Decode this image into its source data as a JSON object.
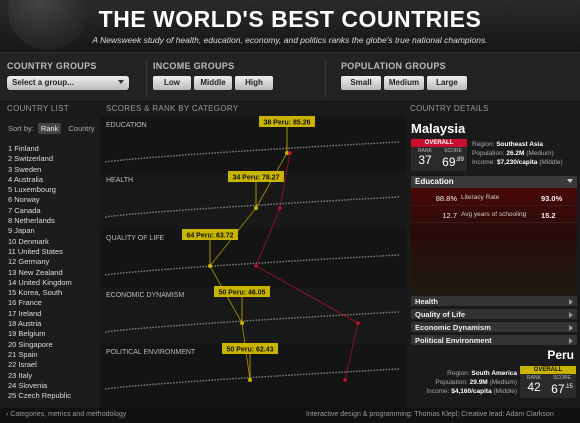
{
  "header": {
    "title": "THE WORLD'S BEST COUNTRIES",
    "subtitle": "A Newsweek study of health, education, economy, and politics ranks the globe's true national champions."
  },
  "filters": {
    "country_groups": {
      "label": "COUNTRY GROUPS",
      "select_value": "Select a group..."
    },
    "income_groups": {
      "label": "INCOME GROUPS",
      "buttons": [
        "Low",
        "Middle",
        "High"
      ]
    },
    "population_groups": {
      "label": "POPULATION GROUPS",
      "buttons": [
        "Small",
        "Medium",
        "Large"
      ]
    }
  },
  "panels": {
    "list_label": "COUNTRY LIST",
    "scores_label": "SCORES & RANK BY CATEGORY",
    "details_label": "COUNTRY DETAILS"
  },
  "list": {
    "sort_label": "Sort by:",
    "sort_options": [
      "Rank",
      "Country"
    ],
    "countries": [
      "1 Finland",
      "2 Switzerland",
      "3 Sweden",
      "4 Australia",
      "5 Luxembourg",
      "6 Norway",
      "7 Canada",
      "8 Netherlands",
      "9 Japan",
      "10 Denmark",
      "11 United States",
      "12 Germany",
      "13 New Zealand",
      "14 United Kingdom",
      "15 Korea, South",
      "16 France",
      "17 Ireland",
      "18 Austria",
      "19 Belgium",
      "20 Singapore",
      "21 Spain",
      "22 Israel",
      "23 Italy",
      "24 Slovenia",
      "25 Czech Republic"
    ]
  },
  "chart_data": {
    "type": "scatter",
    "categories": [
      "EDUCATION",
      "HEALTH",
      "QUALITY OF LIFE",
      "ECONOMIC DYNAMISM",
      "POLITICAL ENVIRONMENT"
    ],
    "highlight": {
      "labels": [
        "38 Peru: 85.26",
        "34 Peru: 78.27",
        "64 Peru: 63.72",
        "50 Peru: 46.05",
        "50 Peru: 62.43"
      ]
    },
    "colors": {
      "highlight": "#c9b400",
      "compare": "#c8102e"
    }
  },
  "details": {
    "selected": {
      "name": "Malaysia",
      "overall_label": "OVERALL",
      "rank_label": "RANK",
      "score_label": "SCORE",
      "rank": "37",
      "score": "69",
      "score_dec": ".89",
      "region_label": "Region:",
      "region": "Southeast Asia",
      "population_label": "Population:",
      "population": "26.2M",
      "population_group": "(Medium)",
      "income_label": "Income:",
      "income": "$7,230/capita",
      "income_group": "(Middle)"
    },
    "expanded_category": {
      "name": "Education",
      "metrics": [
        {
          "value_a": "88.8%",
          "label": "Literacy Rate",
          "value_b": "93.0%"
        },
        {
          "value_a": "12.7",
          "label": "Avg years of schooling",
          "value_b": "15.2"
        }
      ]
    },
    "collapsed_categories": [
      "Health",
      "Quality of Life",
      "Economic Dynamism",
      "Political Environment"
    ],
    "compare": {
      "name": "Peru",
      "overall_label": "OVERALL",
      "rank_label": "RANK",
      "score_label": "SCORE",
      "rank": "42",
      "score": "67",
      "score_dec": ".15",
      "region_label": "Region:",
      "region": "South America",
      "population_label": "Population:",
      "population": "29.9M",
      "population_group": "(Medium)",
      "income_label": "Income:",
      "income": "$4,160/capita",
      "income_group": "(Middle)"
    }
  },
  "footer": {
    "methodology": "› Categories, metrics and methodology",
    "credits": "Interactive design & programming: Thomas Klepl; Creative lead: Adam Clarkson"
  }
}
